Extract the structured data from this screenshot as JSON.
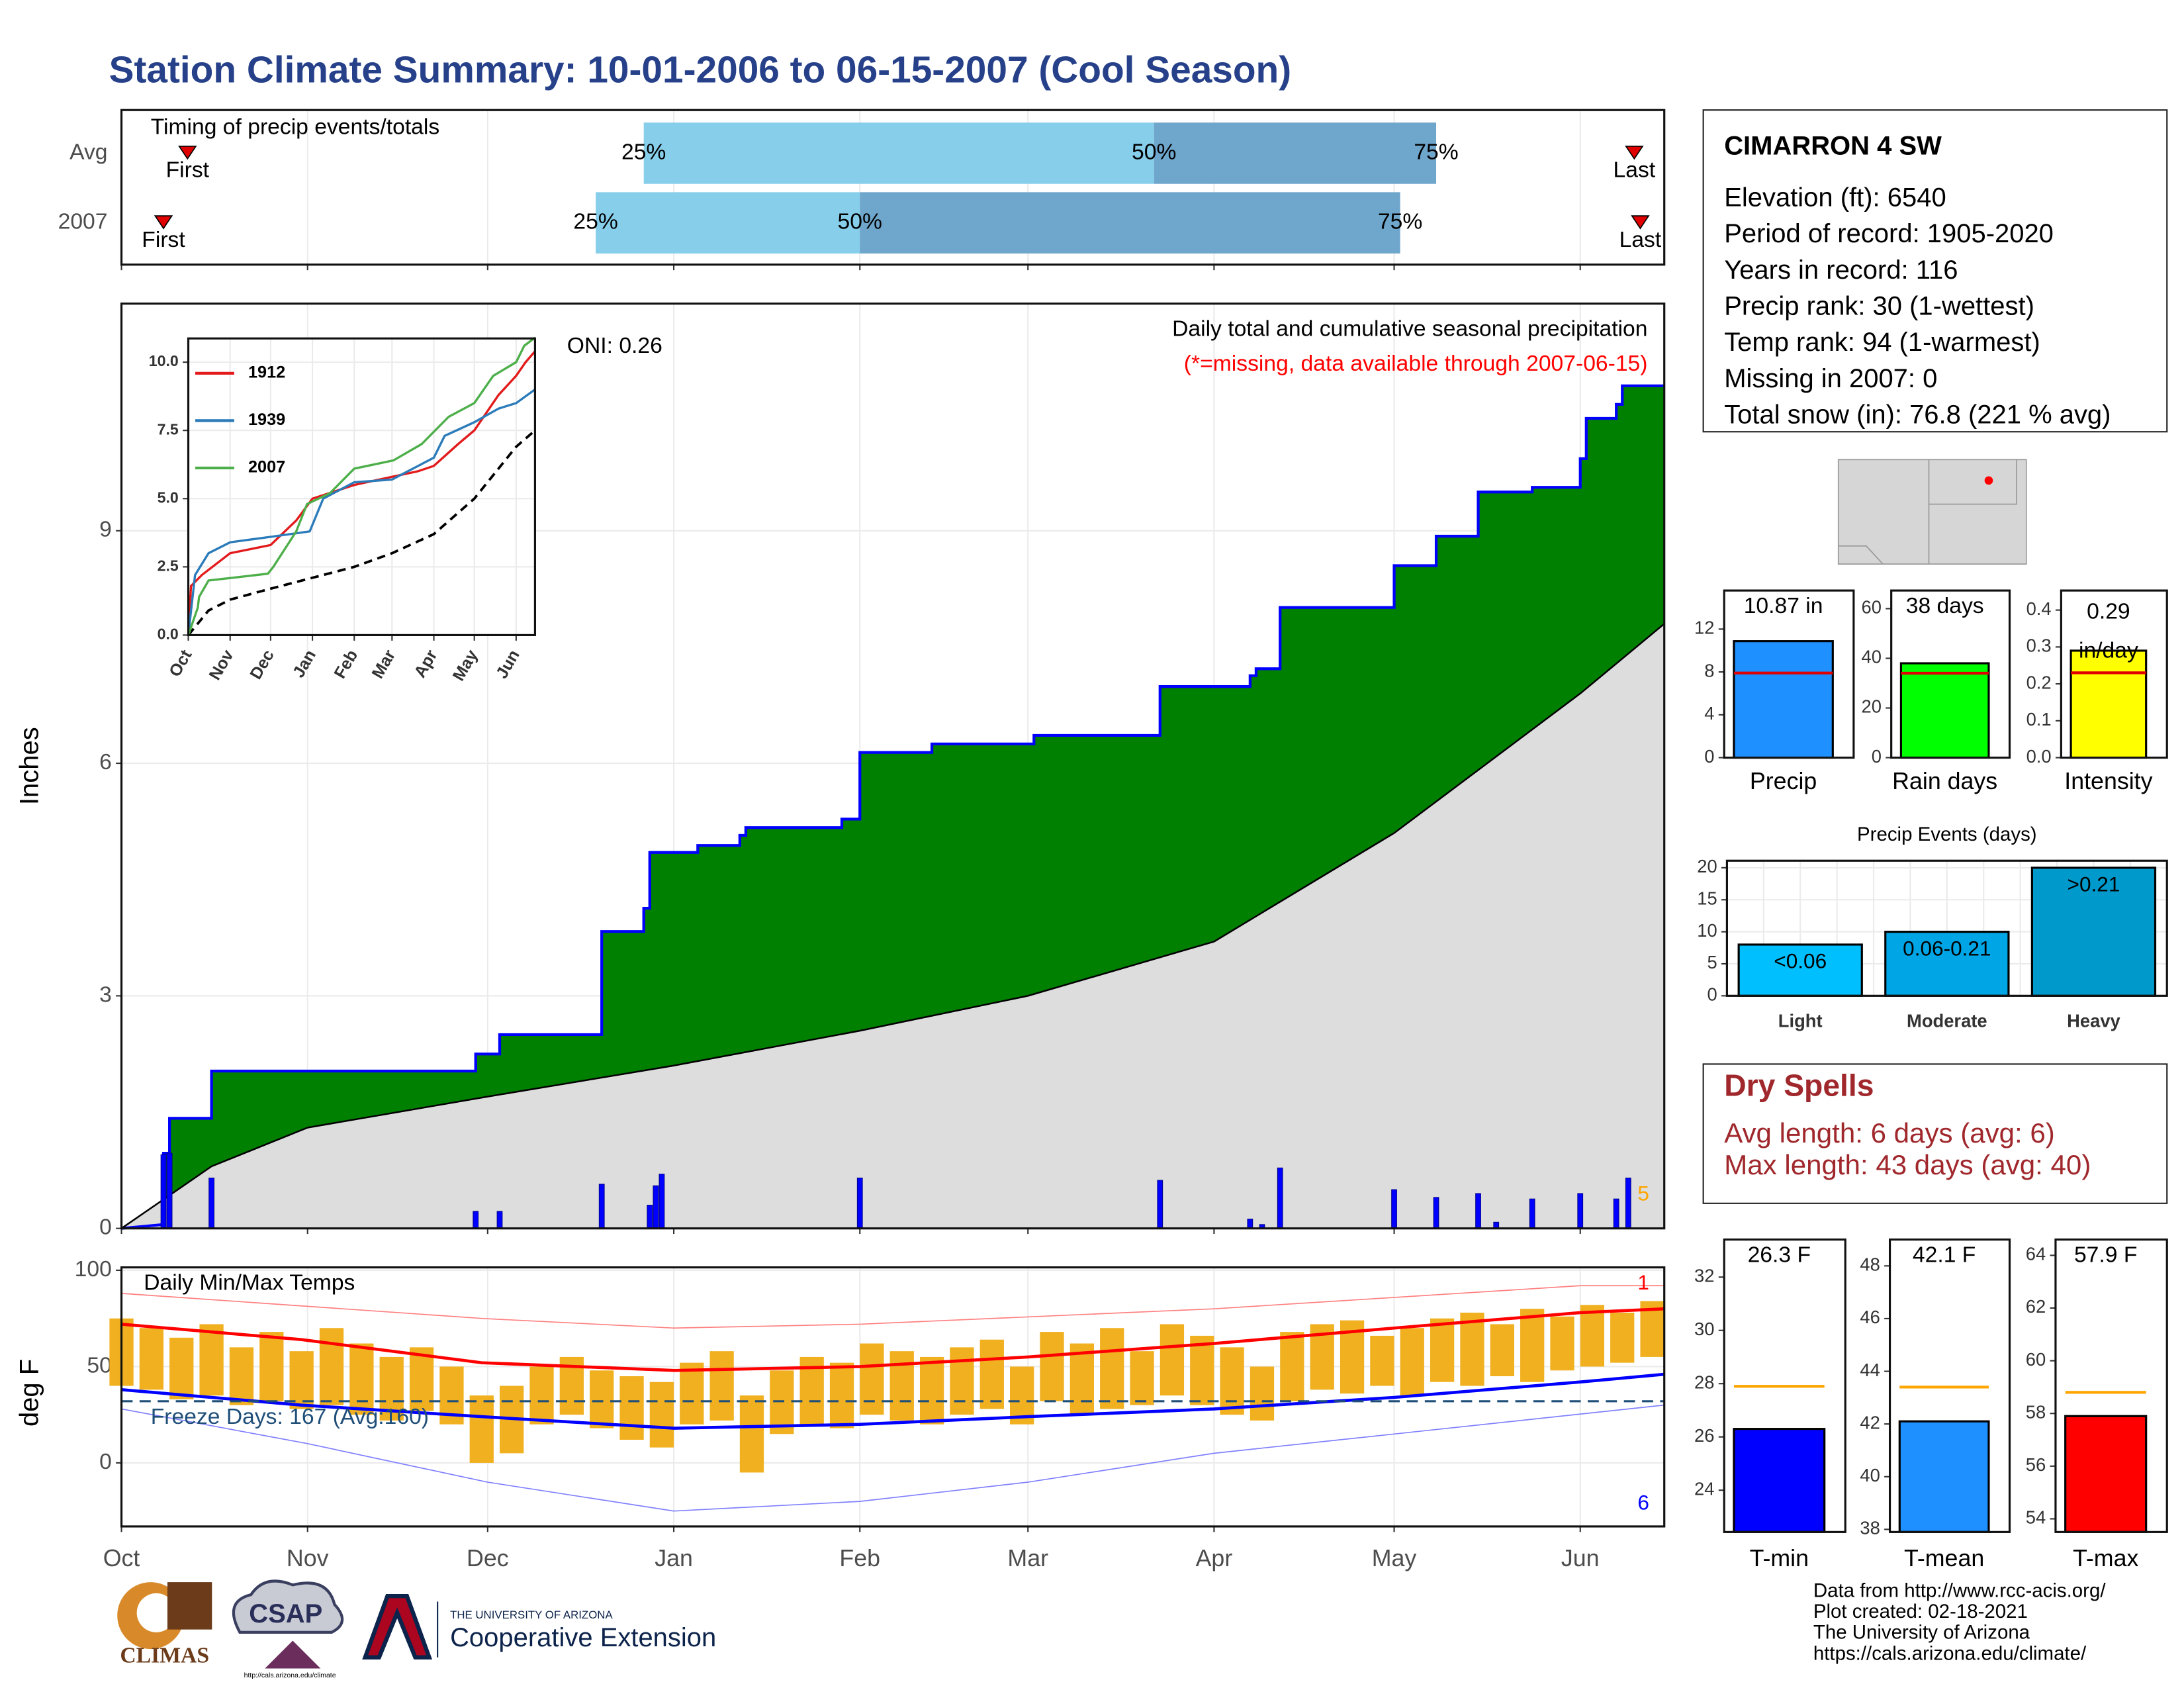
{
  "title": "Station Climate Summary: 10-01-2006 to 06-15-2007 (Cool Season)",
  "station": {
    "name": "CIMARRON 4 SW",
    "lines": [
      "Elevation (ft): 6540",
      "Period of record: 1905-2020",
      "Years in record: 116",
      "Precip rank: 30 (1-wettest)",
      "Temp rank: 94 (1-warmest)",
      "Missing in 2007: 0",
      "Total snow (in): 76.8 (221 % avg)"
    ]
  },
  "dry_spells": {
    "title": "Dry Spells",
    "lines": [
      "Avg length: 6 days (avg: 6)",
      "Max length: 43 days (avg: 40)"
    ]
  },
  "footer": [
    "Data from http://www.rcc-acis.org/",
    "Plot created: 02-18-2021",
    "The University of Arizona",
    "https://cals.arizona.edu/climate/"
  ],
  "logos": {
    "climas": "CLIMAS",
    "csap": "CSAP",
    "csap_url": "http://cals.arizona.edu/climate",
    "ua": "THE UNIVERSITY OF ARIZONA",
    "coop": "Cooperative Extension"
  },
  "chart_data": [
    {
      "type": "timing",
      "title": "Timing of precip events/totals",
      "xlim": [
        0,
        257
      ],
      "xticks": [
        0,
        31,
        61,
        92,
        123,
        151,
        182,
        212,
        243
      ],
      "categories": [
        "Avg",
        "2007"
      ],
      "first": [
        11,
        7
      ],
      "p25": [
        87,
        79
      ],
      "p50": [
        172,
        123
      ],
      "p75": [
        219,
        213
      ],
      "last": [
        252,
        253
      ],
      "labels": {
        "first": "First",
        "last": "Last",
        "p25": "25%",
        "p50": "50%",
        "p75": "75%"
      },
      "colors": [
        "#87ceeb",
        "#6fa6cc"
      ],
      "marker_color": "#e00000"
    },
    {
      "type": "step",
      "ylabel": "Inches",
      "title": "Daily total and cumulative seasonal precipitation",
      "subtitle": "(*=missing, data available through 2007-06-15)",
      "oni": "ONI: 0.26",
      "note": "5",
      "xlim": [
        0,
        257
      ],
      "xticks": [
        0,
        31,
        61,
        92,
        123,
        151,
        182,
        212,
        243
      ],
      "ylim": [
        0,
        11.93
      ],
      "yticks": [
        0,
        3,
        6,
        9
      ],
      "grid": true,
      "cumulative": {
        "color": "#008000",
        "line": "#0000ff",
        "x": [
          0,
          7,
          7,
          8,
          8,
          15,
          15,
          59,
          59,
          63,
          63,
          80,
          80,
          87,
          87,
          88,
          88,
          96,
          96,
          103,
          103,
          104,
          104,
          120,
          120,
          123,
          123,
          135,
          135,
          152,
          152,
          173,
          173,
          188,
          188,
          189,
          189,
          193,
          193,
          212,
          212,
          219,
          219,
          226,
          226,
          235,
          235,
          243,
          243,
          244,
          244,
          249,
          249,
          250,
          250,
          257
        ],
        "values": [
          0,
          0.05,
          0.97,
          0.97,
          1.42,
          1.42,
          2.03,
          2.03,
          2.25,
          2.25,
          2.5,
          2.5,
          3.83,
          3.83,
          4.13,
          4.13,
          4.85,
          4.85,
          4.94,
          4.94,
          5.07,
          5.07,
          5.17,
          5.17,
          5.28,
          5.28,
          6.14,
          6.14,
          6.25,
          6.25,
          6.36,
          6.36,
          6.99,
          6.99,
          7.13,
          7.13,
          7.22,
          7.22,
          8.01,
          8.01,
          8.55,
          8.55,
          8.93,
          8.93,
          9.5,
          9.5,
          9.56,
          9.56,
          9.93,
          9.93,
          10.45,
          10.45,
          10.63,
          10.63,
          10.87,
          10.87
        ]
      },
      "average": {
        "color": "#dddddd",
        "line": "#000000",
        "x": [
          0,
          15,
          31,
          61,
          92,
          123,
          151,
          182,
          212,
          243,
          257
        ],
        "values": [
          0,
          0.8,
          1.3,
          1.7,
          2.1,
          2.55,
          3.0,
          3.7,
          5.1,
          6.9,
          7.8
        ]
      },
      "daily": {
        "color": "#0000ff",
        "x": [
          7,
          8,
          15,
          59,
          63,
          80,
          88,
          89,
          90,
          123,
          173,
          188,
          190,
          193,
          212,
          219,
          226,
          229,
          235,
          243,
          249,
          251
        ],
        "values": [
          0.95,
          0.97,
          0.65,
          0.22,
          0.22,
          0.57,
          0.3,
          0.55,
          0.7,
          0.65,
          0.62,
          0.12,
          0.05,
          0.78,
          0.5,
          0.4,
          0.45,
          0.08,
          0.38,
          0.45,
          0.38,
          0.65
        ]
      },
      "note_color": "#ffa500",
      "subtitle_color": "#ff0000"
    },
    {
      "type": "line",
      "xlim": [
        0,
        257
      ],
      "xticks": [
        {
          "value": 0,
          "label": "Oct"
        },
        {
          "value": 31,
          "label": "Nov"
        },
        {
          "value": 61,
          "label": "Dec"
        },
        {
          "value": 92,
          "label": "Jan"
        },
        {
          "value": 123,
          "label": "Feb"
        },
        {
          "value": 151,
          "label": "Mar"
        },
        {
          "value": 182,
          "label": "Apr"
        },
        {
          "value": 212,
          "label": "May"
        },
        {
          "value": 243,
          "label": "Jun"
        }
      ],
      "ylim": [
        0,
        10.87
      ],
      "yticks": [
        {
          "value": 0,
          "label": "0.0"
        },
        2.5,
        {
          "value": 5,
          "label": "5.0"
        },
        7.5,
        {
          "value": 10,
          "label": "10.0"
        }
      ],
      "grid": true,
      "series": [
        {
          "name": "1912",
          "color": "#e31a1c",
          "x": [
            0,
            2,
            10,
            31,
            61,
            80,
            92,
            123,
            151,
            170,
            182,
            200,
            212,
            230,
            243,
            250,
            257
          ],
          "values": [
            0,
            1.8,
            2.2,
            3.0,
            3.3,
            4.2,
            5.0,
            5.5,
            5.8,
            6.0,
            6.2,
            7.0,
            7.5,
            8.8,
            9.5,
            10.0,
            10.4
          ]
        },
        {
          "name": "1939",
          "color": "#2b7bba",
          "x": [
            0,
            5,
            15,
            31,
            61,
            90,
            100,
            123,
            151,
            182,
            190,
            212,
            230,
            243,
            257
          ],
          "values": [
            0,
            2.2,
            3.0,
            3.4,
            3.6,
            3.8,
            5.0,
            5.6,
            5.7,
            6.5,
            7.3,
            7.8,
            8.3,
            8.5,
            9.0
          ]
        },
        {
          "name": "2007",
          "color": "#4daf4a",
          "x": [
            0,
            7,
            8,
            15,
            59,
            63,
            80,
            88,
            105,
            123,
            152,
            173,
            193,
            212,
            226,
            243,
            249,
            257
          ],
          "values": [
            0,
            1.0,
            1.4,
            2.0,
            2.25,
            2.5,
            3.8,
            4.8,
            5.2,
            6.1,
            6.4,
            7.0,
            8.0,
            8.5,
            9.5,
            10.0,
            10.6,
            10.9
          ]
        }
      ],
      "average": {
        "color": "#000000",
        "x": [
          0,
          15,
          31,
          61,
          92,
          123,
          151,
          182,
          212,
          243,
          257
        ],
        "values": [
          0,
          0.9,
          1.3,
          1.7,
          2.1,
          2.5,
          3.0,
          3.7,
          5.0,
          6.9,
          7.5
        ]
      }
    },
    {
      "type": "range",
      "title": "Daily Min/Max Temps",
      "ylabel": "deg F",
      "xlim": [
        0,
        257
      ],
      "xticks": [
        {
          "value": 0,
          "label": "Oct"
        },
        {
          "value": 31,
          "label": "Nov"
        },
        {
          "value": 61,
          "label": "Dec"
        },
        {
          "value": 92,
          "label": "Jan"
        },
        {
          "value": 123,
          "label": "Feb"
        },
        {
          "value": 151,
          "label": "Mar"
        },
        {
          "value": 182,
          "label": "Apr"
        },
        {
          "value": 212,
          "label": "May"
        },
        {
          "value": 243,
          "label": "Jun"
        }
      ],
      "ylim": [
        -33,
        101.5
      ],
      "yticks": [
        0,
        50,
        100
      ],
      "grid": true,
      "color": "#f0b020",
      "x": [
        0,
        5,
        10,
        15,
        20,
        25,
        30,
        35,
        40,
        45,
        50,
        55,
        60,
        65,
        70,
        75,
        80,
        85,
        90,
        95,
        100,
        105,
        110,
        115,
        120,
        125,
        130,
        135,
        140,
        145,
        150,
        155,
        160,
        165,
        170,
        175,
        180,
        185,
        190,
        195,
        200,
        205,
        210,
        215,
        220,
        225,
        230,
        235,
        240,
        245,
        250,
        255
      ],
      "max": [
        75,
        70,
        65,
        72,
        60,
        68,
        58,
        70,
        62,
        55,
        60,
        50,
        35,
        40,
        50,
        55,
        48,
        45,
        42,
        52,
        58,
        35,
        48,
        55,
        52,
        62,
        58,
        55,
        60,
        64,
        50,
        68,
        62,
        70,
        58,
        72,
        66,
        60,
        50,
        68,
        72,
        74,
        66,
        70,
        75,
        78,
        72,
        80,
        76,
        82,
        78,
        84
      ],
      "min": [
        40,
        38,
        33,
        35,
        30,
        32,
        28,
        30,
        25,
        22,
        27,
        20,
        0,
        5,
        20,
        25,
        18,
        12,
        8,
        20,
        22,
        -5,
        15,
        20,
        18,
        25,
        22,
        20,
        25,
        28,
        20,
        32,
        25,
        28,
        30,
        35,
        30,
        25,
        22,
        32,
        38,
        36,
        40,
        35,
        42,
        40,
        45,
        42,
        48,
        50,
        52,
        55
      ],
      "lines": [
        {
          "color": "#ff0000",
          "width": 2.2,
          "x": [
            0,
            30,
            60,
            92,
            123,
            151,
            182,
            212,
            243,
            257
          ],
          "values": [
            72,
            64,
            52,
            48,
            50,
            55,
            62,
            70,
            78,
            80
          ]
        },
        {
          "color": "#0000ff",
          "width": 2.2,
          "x": [
            0,
            30,
            60,
            92,
            123,
            151,
            182,
            212,
            243,
            257
          ],
          "values": [
            38,
            30,
            24,
            18,
            20,
            24,
            28,
            34,
            42,
            46
          ]
        },
        {
          "color": "#ff8080",
          "width": 0.8,
          "x": [
            0,
            60,
            92,
            123,
            182,
            243,
            257
          ],
          "values": [
            88,
            75,
            70,
            72,
            80,
            92,
            92
          ]
        },
        {
          "color": "#8080ff",
          "width": 0.8,
          "x": [
            0,
            31,
            61,
            92,
            123,
            151,
            182,
            212,
            257
          ],
          "values": [
            28,
            10,
            -10,
            -25,
            -20,
            -10,
            5,
            15,
            30
          ]
        }
      ],
      "freeze": {
        "value": 32,
        "label": "Freeze Days: 167 (Avg:160)",
        "color": "#1f4e79"
      },
      "note_high": "1",
      "note_low": "6"
    },
    {
      "type": "bar",
      "categories": [
        "Precip"
      ],
      "values": [
        10.87
      ],
      "value_labels": [
        "10.87 in"
      ],
      "average": 7.9,
      "average_color": "#e00000",
      "color": "#1e90ff",
      "ylim": [
        0,
        15.6
      ],
      "yticks": [
        0,
        4,
        8,
        12
      ]
    },
    {
      "type": "bar",
      "categories": [
        "Rain days"
      ],
      "values": [
        38
      ],
      "value_labels": [
        "38 days"
      ],
      "average": 34,
      "average_color": "#e00000",
      "color": "#00ff00",
      "ylim": [
        0,
        67.3
      ],
      "yticks": [
        0,
        20,
        40,
        60
      ]
    },
    {
      "type": "bar",
      "categories": [
        "Intensity"
      ],
      "values": [
        0.29
      ],
      "value_labels": [
        "0.29 in/day"
      ],
      "average": 0.23,
      "average_color": "#e00000",
      "color": "#ffff00",
      "ylim": [
        0,
        0.453
      ],
      "yticks": [
        {
          "value": 0,
          "label": "0.0"
        },
        0.1,
        0.2,
        0.3,
        0.4
      ]
    },
    {
      "type": "events",
      "title": "Precip Events (days)",
      "categories": [
        "Light",
        "Moderate",
        "Heavy"
      ],
      "values": [
        8,
        10,
        20
      ],
      "bin_labels": [
        "<0.06",
        "0.06-0.21",
        ">0.21"
      ],
      "colors": [
        "#00bfff",
        "#00a5e6",
        "#0099cc"
      ],
      "ylim": [
        0,
        21.1
      ],
      "yticks": [
        0,
        5,
        10,
        15,
        20
      ],
      "grid": true
    },
    {
      "type": "bar",
      "categories": [
        "T-min"
      ],
      "values": [
        26.3
      ],
      "value_labels": [
        "26.3 F"
      ],
      "average": 27.9,
      "average_color": "#ffa500",
      "color": "#0000ff",
      "ylim": [
        22.43,
        33.41
      ],
      "yticks": [
        24,
        26,
        28,
        30,
        32
      ]
    },
    {
      "type": "bar",
      "categories": [
        "T-mean"
      ],
      "values": [
        42.1
      ],
      "value_labels": [
        "42.1 F"
      ],
      "average": 43.4,
      "average_color": "#ffa500",
      "color": "#1e90ff",
      "ylim": [
        37.9,
        49.0
      ],
      "yticks": [
        38,
        40,
        42,
        44,
        46,
        48
      ]
    },
    {
      "type": "bar",
      "categories": [
        "T-max"
      ],
      "values": [
        57.9
      ],
      "value_labels": [
        "57.9 F"
      ],
      "average": 58.8,
      "average_color": "#ffa500",
      "color": "#ff0000",
      "ylim": [
        53.5,
        64.6
      ],
      "yticks": [
        54,
        56,
        58,
        60,
        62,
        64
      ]
    }
  ]
}
